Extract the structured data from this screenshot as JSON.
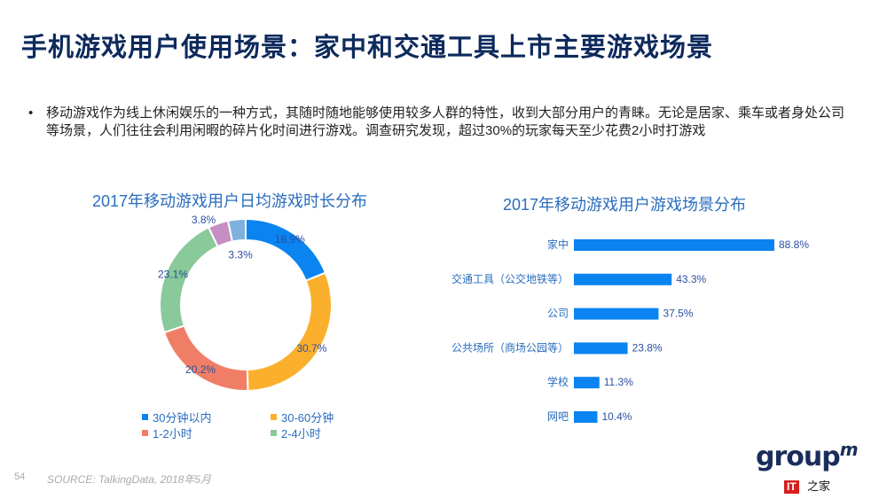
{
  "title": "手机游戏用户使用场景：家中和交通工具上市主要游戏场景",
  "bullet": "移动游戏作为线上休闲娱乐的一种方式，其随时随地能够使用较多人群的特性，收到大部分用户的青睐。无论是居家、乘车或者身处公司等场景，人们往往会利用闲暇的碎片化时间进行游戏。调查研究发现，超过30%的玩家每天至少花费2小时打游戏",
  "bullet_marker": "•",
  "chart_data": [
    {
      "type": "pie",
      "donut": true,
      "title": "2017年移动游戏用户日均游戏时长分布",
      "slices": [
        {
          "name": "30分钟以内",
          "value": 18.9,
          "label": "18.9%",
          "color": "#0a84f0"
        },
        {
          "name": "30-60分钟",
          "value": 30.7,
          "label": "30.7%",
          "color": "#fbb02d"
        },
        {
          "name": "1-2小时",
          "value": 20.2,
          "label": "20.2%",
          "color": "#f07e66"
        },
        {
          "name": "2-4小时",
          "value": 23.1,
          "label": "23.1%",
          "color": "#89c99a"
        },
        {
          "name": "",
          "value": 3.8,
          "label": "3.8%",
          "color": "#c58fc4"
        },
        {
          "name": "",
          "value": 3.3,
          "label": "3.3%",
          "color": "#7fb1de"
        }
      ],
      "legend": [
        "30分钟以内",
        "30-60分钟",
        "1-2小时",
        "2-4小时"
      ],
      "legend_placement": "bottom"
    },
    {
      "type": "bar",
      "orientation": "horizontal",
      "title": "2017年移动游戏用户游戏场景分布",
      "categories": [
        "家中",
        "交通工具（公交地铁等）",
        "公司",
        "公共场所（商场公园等）",
        "学校",
        "网吧"
      ],
      "values": [
        88.8,
        43.3,
        37.5,
        23.8,
        11.3,
        10.4
      ],
      "labels": [
        "88.8%",
        "43.3%",
        "37.5%",
        "23.8%",
        "11.3%",
        "10.4%"
      ],
      "color": "#0a84f0",
      "grid": false
    }
  ],
  "footer": {
    "page": "54",
    "source": "SOURCE: TalkingData, 2018年5月"
  },
  "logo": {
    "text": "group",
    "sup": "m",
    "badge": "IT",
    "badge2": "之家"
  }
}
